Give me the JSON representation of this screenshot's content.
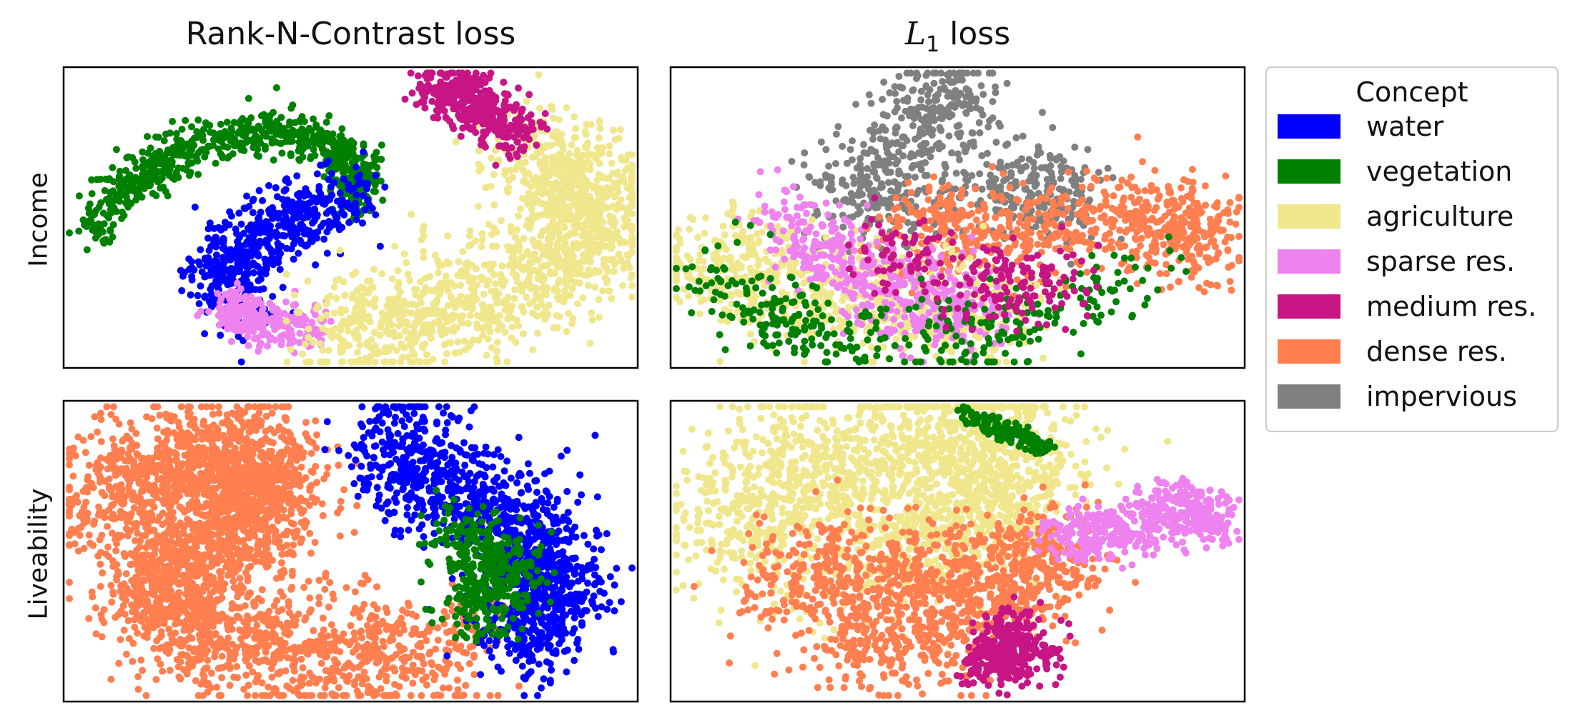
{
  "chart_data": {
    "type": "scatter",
    "columns": [
      {
        "id": "rnc",
        "title": "Rank-N-Contrast loss"
      },
      {
        "id": "l1",
        "title_main": "L",
        "title_sub": "1",
        "title_rest": " loss"
      }
    ],
    "rows": [
      {
        "id": "income",
        "label": "Income"
      },
      {
        "id": "liveability",
        "label": "Liveability"
      }
    ],
    "axes": {
      "x_ticks": false,
      "y_ticks": false
    },
    "legend": {
      "title": "Concept",
      "placement": "right",
      "items": [
        {
          "label": "water",
          "color": "#0000ff"
        },
        {
          "label": "vegetation",
          "color": "#008000"
        },
        {
          "label": "agriculture",
          "color": "#f0e68c"
        },
        {
          "label": "sparse res.",
          "color": "#ee82ee"
        },
        {
          "label": "medium res.",
          "color": "#c71585"
        },
        {
          "label": "dense res.",
          "color": "#ff7f50"
        },
        {
          "label": "impervious",
          "color": "#808080"
        }
      ]
    },
    "panels": [
      {
        "column": "rnc",
        "row": "income",
        "clusters": [
          {
            "concept": "vegetation",
            "path": [
              [
                0.05,
                0.54
              ],
              [
                0.12,
                0.38
              ],
              [
                0.22,
                0.27
              ],
              [
                0.34,
                0.21
              ],
              [
                0.44,
                0.24
              ],
              [
                0.52,
                0.33
              ],
              [
                0.5,
                0.45
              ]
            ],
            "width": 0.04,
            "count": 700
          },
          {
            "concept": "water",
            "path": [
              [
                0.5,
                0.43
              ],
              [
                0.42,
                0.5
              ],
              [
                0.33,
                0.58
              ],
              [
                0.28,
                0.68
              ],
              [
                0.3,
                0.76
              ]
            ],
            "width": 0.07,
            "count": 550
          },
          {
            "concept": "sparse res.",
            "path": [
              [
                0.28,
                0.78
              ],
              [
                0.34,
                0.85
              ],
              [
                0.45,
                0.87
              ]
            ],
            "width": 0.04,
            "count": 250
          },
          {
            "concept": "agriculture",
            "path": [
              [
                0.45,
                0.88
              ],
              [
                0.62,
                0.83
              ],
              [
                0.8,
                0.73
              ],
              [
                0.93,
                0.55
              ],
              [
                0.9,
                0.38
              ],
              [
                0.8,
                0.28
              ]
            ],
            "width": 0.1,
            "count": 1400
          },
          {
            "concept": "medium res.",
            "path": [
              [
                0.64,
                0.06
              ],
              [
                0.72,
                0.13
              ],
              [
                0.8,
                0.23
              ]
            ],
            "width": 0.05,
            "count": 400
          }
        ]
      },
      {
        "column": "l1",
        "row": "income",
        "clusters": [
          {
            "concept": "impervious",
            "path": [
              [
                0.5,
                0.05
              ],
              [
                0.45,
                0.2
              ],
              [
                0.3,
                0.45
              ],
              [
                0.6,
                0.4
              ],
              [
                0.7,
                0.45
              ]
            ],
            "width": 0.09,
            "count": 700
          },
          {
            "concept": "dense res.",
            "path": [
              [
                0.4,
                0.55
              ],
              [
                0.65,
                0.55
              ],
              [
                0.85,
                0.5
              ],
              [
                0.95,
                0.58
              ]
            ],
            "width": 0.08,
            "count": 700
          },
          {
            "concept": "agriculture",
            "path": [
              [
                0.05,
                0.65
              ],
              [
                0.2,
                0.7
              ],
              [
                0.4,
                0.8
              ],
              [
                0.6,
                0.82
              ]
            ],
            "width": 0.1,
            "count": 700
          },
          {
            "concept": "sparse res.",
            "path": [
              [
                0.2,
                0.5
              ],
              [
                0.35,
                0.75
              ],
              [
                0.55,
                0.8
              ]
            ],
            "width": 0.08,
            "count": 450
          },
          {
            "concept": "vegetation",
            "path": [
              [
                0.08,
                0.68
              ],
              [
                0.2,
                0.88
              ],
              [
                0.55,
                0.92
              ],
              [
                0.85,
                0.65
              ]
            ],
            "width": 0.08,
            "count": 350
          },
          {
            "concept": "medium res.",
            "path": [
              [
                0.35,
                0.6
              ],
              [
                0.55,
                0.75
              ],
              [
                0.7,
                0.7
              ]
            ],
            "width": 0.08,
            "count": 200
          }
        ]
      },
      {
        "column": "rnc",
        "row": "liveability",
        "clusters": [
          {
            "concept": "dense res.",
            "path": [
              [
                0.05,
                0.33
              ],
              [
                0.17,
                0.24
              ],
              [
                0.28,
                0.2
              ],
              [
                0.36,
                0.25
              ],
              [
                0.33,
                0.4
              ],
              [
                0.22,
                0.5
              ],
              [
                0.15,
                0.62
              ],
              [
                0.25,
                0.78
              ],
              [
                0.45,
                0.85
              ],
              [
                0.7,
                0.82
              ]
            ],
            "width": 0.11,
            "count": 3000
          },
          {
            "concept": "water",
            "path": [
              [
                0.57,
                0.11
              ],
              [
                0.62,
                0.25
              ],
              [
                0.74,
                0.35
              ],
              [
                0.85,
                0.5
              ],
              [
                0.85,
                0.68
              ],
              [
                0.78,
                0.78
              ]
            ],
            "width": 0.1,
            "count": 1300
          },
          {
            "concept": "vegetation",
            "path": [
              [
                0.67,
                0.45
              ],
              [
                0.77,
                0.55
              ],
              [
                0.72,
                0.72
              ]
            ],
            "width": 0.07,
            "count": 400
          }
        ]
      },
      {
        "column": "l1",
        "row": "liveability",
        "clusters": [
          {
            "concept": "agriculture",
            "path": [
              [
                0.1,
                0.45
              ],
              [
                0.2,
                0.3
              ],
              [
                0.4,
                0.15
              ],
              [
                0.6,
                0.15
              ],
              [
                0.55,
                0.4
              ],
              [
                0.3,
                0.55
              ]
            ],
            "width": 0.14,
            "count": 1800
          },
          {
            "concept": "dense res.",
            "path": [
              [
                0.15,
                0.6
              ],
              [
                0.35,
                0.55
              ],
              [
                0.55,
                0.6
              ],
              [
                0.7,
                0.5
              ],
              [
                0.45,
                0.8
              ],
              [
                0.25,
                0.75
              ]
            ],
            "width": 0.1,
            "count": 1200
          },
          {
            "concept": "sparse res.",
            "path": [
              [
                0.68,
                0.45
              ],
              [
                0.8,
                0.42
              ],
              [
                0.9,
                0.34
              ],
              [
                0.95,
                0.4
              ]
            ],
            "width": 0.05,
            "count": 500
          },
          {
            "concept": "medium res.",
            "path": [
              [
                0.6,
                0.75
              ],
              [
                0.55,
                0.88
              ],
              [
                0.65,
                0.82
              ]
            ],
            "width": 0.05,
            "count": 350
          },
          {
            "concept": "vegetation",
            "path": [
              [
                0.52,
                0.05
              ],
              [
                0.65,
                0.15
              ]
            ],
            "width": 0.02,
            "count": 120
          }
        ]
      }
    ]
  }
}
